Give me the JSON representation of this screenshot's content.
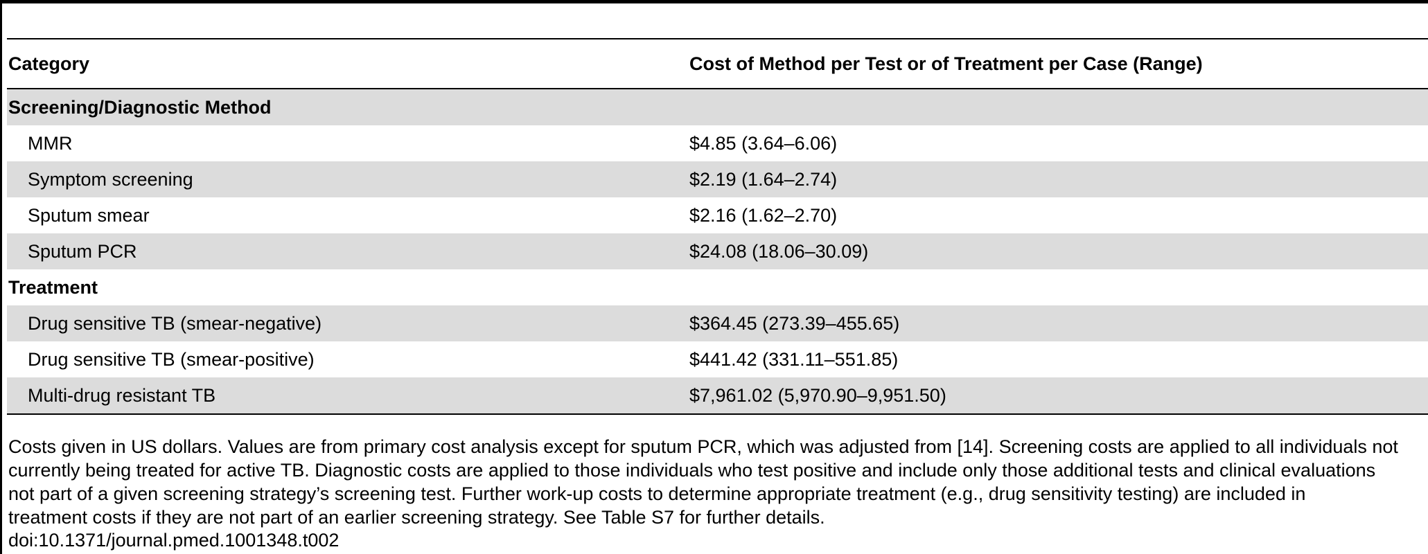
{
  "table": {
    "headers": {
      "category": "Category",
      "cost": "Cost of Method per Test or of Treatment per Case (Range)"
    },
    "sections": [
      {
        "title": "Screening/Diagnostic Method",
        "rows": [
          {
            "category": "MMR",
            "cost": "$4.85 (3.64–6.06)"
          },
          {
            "category": "Symptom screening",
            "cost": "$2.19 (1.64–2.74)"
          },
          {
            "category": "Sputum smear",
            "cost": "$2.16 (1.62–2.70)"
          },
          {
            "category": "Sputum PCR",
            "cost": "$24.08 (18.06–30.09)"
          }
        ]
      },
      {
        "title": "Treatment",
        "rows": [
          {
            "category": "Drug sensitive TB (smear-negative)",
            "cost": "$364.45 (273.39–455.65)"
          },
          {
            "category": "Drug sensitive TB (smear-positive)",
            "cost": "$441.42 (331.11–551.85)"
          },
          {
            "category": "Multi-drug resistant TB",
            "cost": "$7,961.02 (5,970.90–9,951.50)"
          }
        ]
      }
    ]
  },
  "footnote": {
    "lines": [
      "Costs given in US dollars. Values are from primary cost analysis except for sputum PCR, which was adjusted from [14]. Screening costs are applied to all individuals not",
      "currently being treated for active TB. Diagnostic costs are applied to those individuals who test positive and include only those additional tests and clinical evaluations",
      "not part of a given screening strategy’s screening test. Further work-up costs to determine appropriate treatment (e.g., drug sensitivity testing) are included in",
      "treatment costs if they are not part of an earlier screening strategy. See Table S7 for further details."
    ],
    "doi": "doi:10.1371/journal.pmed.1001348.t002"
  }
}
